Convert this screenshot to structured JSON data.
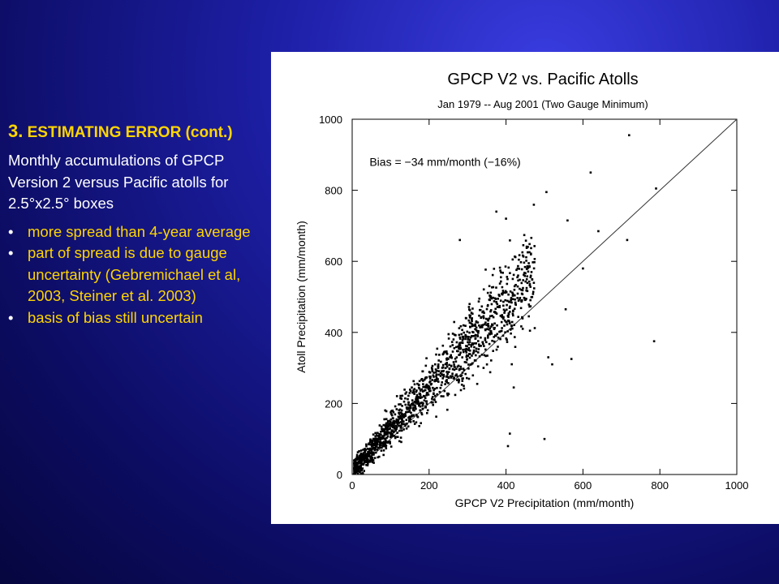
{
  "slide": {
    "heading_number": "3.",
    "heading_text": " ESTIMATING ERROR (cont.)",
    "intro": "Monthly accumulations of GPCP Version 2 versus Pacific atolls for 2.5°x2.5° boxes",
    "bullets": [
      "more spread than 4-year average",
      "part of spread is due to gauge uncertainty (Gebremichael et al, 2003, Steiner et al. 2003)",
      "basis of bias still uncertain"
    ],
    "colors": {
      "background": "#1d1fa6",
      "heading": "#ffd500",
      "text": "#ffffff",
      "bullets": "#ffd500"
    }
  },
  "chart_data": {
    "type": "scatter",
    "title": "GPCP V2 vs. Pacific Atolls",
    "subtitle": "Jan 1979 -- Aug 2001 (Two Gauge Minimum)",
    "xlabel": "GPCP V2 Precipitation (mm/month)",
    "ylabel": "Atoll Precipitation (mm/month)",
    "xlim": [
      0,
      1000
    ],
    "ylim": [
      0,
      1000
    ],
    "xticks": [
      "0",
      "200",
      "400",
      "600",
      "800",
      "1000"
    ],
    "yticks": [
      "0",
      "200",
      "400",
      "600",
      "800",
      "1000"
    ],
    "annotation": "Bias = −34 mm/month (−16%)",
    "reference_line": {
      "label": "",
      "x": [
        0,
        1000
      ],
      "y": [
        0,
        1000
      ]
    },
    "grid": false,
    "point_count": 1400,
    "highlight_points": [
      {
        "x": 720,
        "y": 955
      },
      {
        "x": 620,
        "y": 850
      },
      {
        "x": 505,
        "y": 795
      },
      {
        "x": 790,
        "y": 805
      },
      {
        "x": 375,
        "y": 740
      },
      {
        "x": 400,
        "y": 720
      },
      {
        "x": 560,
        "y": 715
      },
      {
        "x": 640,
        "y": 685
      },
      {
        "x": 715,
        "y": 660
      },
      {
        "x": 600,
        "y": 580
      },
      {
        "x": 555,
        "y": 465
      },
      {
        "x": 785,
        "y": 375
      },
      {
        "x": 410,
        "y": 115
      },
      {
        "x": 405,
        "y": 80
      },
      {
        "x": 500,
        "y": 100
      },
      {
        "x": 570,
        "y": 325
      },
      {
        "x": 420,
        "y": 245
      },
      {
        "x": 325,
        "y": 255
      },
      {
        "x": 280,
        "y": 660
      },
      {
        "x": 510,
        "y": 330
      },
      {
        "x": 520,
        "y": 310
      }
    ]
  }
}
